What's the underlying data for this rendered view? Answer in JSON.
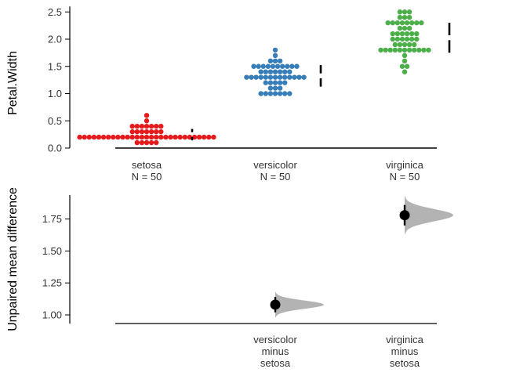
{
  "chart_data": [
    {
      "type": "scatter",
      "subtype": "swarm",
      "ylabel": "Petal.Width",
      "ylim": [
        0,
        2.6
      ],
      "yticks": [
        "0.0",
        "0.5",
        "1.0",
        "1.5",
        "2.0",
        "2.5"
      ],
      "ytick_values": [
        0,
        0.5,
        1.0,
        1.5,
        2.0,
        2.5
      ],
      "categories": [
        "setosa",
        "versicolor",
        "virginica"
      ],
      "n_labels": [
        "N = 50",
        "N = 50",
        "N = 50"
      ],
      "groups": [
        {
          "name": "setosa",
          "color": "#e41a1c",
          "values": [
            0.1,
            0.1,
            0.1,
            0.1,
            0.1,
            0.2,
            0.2,
            0.2,
            0.2,
            0.2,
            0.2,
            0.2,
            0.2,
            0.2,
            0.2,
            0.2,
            0.2,
            0.2,
            0.2,
            0.2,
            0.2,
            0.2,
            0.2,
            0.2,
            0.2,
            0.2,
            0.2,
            0.2,
            0.2,
            0.2,
            0.2,
            0.2,
            0.2,
            0.2,
            0.3,
            0.3,
            0.3,
            0.3,
            0.3,
            0.3,
            0.3,
            0.4,
            0.4,
            0.4,
            0.4,
            0.4,
            0.4,
            0.4,
            0.5,
            0.6
          ],
          "mean": 0.246,
          "sd": 0.105
        },
        {
          "name": "versicolor",
          "color": "#377eb8",
          "values": [
            1.0,
            1.0,
            1.0,
            1.0,
            1.0,
            1.0,
            1.0,
            1.1,
            1.1,
            1.1,
            1.2,
            1.2,
            1.2,
            1.2,
            1.2,
            1.3,
            1.3,
            1.3,
            1.3,
            1.3,
            1.3,
            1.3,
            1.3,
            1.3,
            1.3,
            1.3,
            1.3,
            1.3,
            1.4,
            1.4,
            1.4,
            1.4,
            1.4,
            1.4,
            1.4,
            1.5,
            1.5,
            1.5,
            1.5,
            1.5,
            1.5,
            1.5,
            1.5,
            1.5,
            1.5,
            1.6,
            1.6,
            1.6,
            1.7,
            1.8
          ],
          "mean": 1.326,
          "sd": 0.198
        },
        {
          "name": "virginica",
          "color": "#4daf4a",
          "values": [
            1.4,
            1.5,
            1.5,
            1.6,
            1.7,
            1.8,
            1.8,
            1.8,
            1.8,
            1.8,
            1.8,
            1.8,
            1.8,
            1.8,
            1.8,
            1.8,
            1.9,
            1.9,
            1.9,
            1.9,
            1.9,
            2.0,
            2.0,
            2.0,
            2.0,
            2.0,
            2.0,
            2.1,
            2.1,
            2.1,
            2.1,
            2.1,
            2.1,
            2.2,
            2.2,
            2.2,
            2.3,
            2.3,
            2.3,
            2.3,
            2.3,
            2.3,
            2.3,
            2.3,
            2.4,
            2.4,
            2.4,
            2.5,
            2.5,
            2.5
          ],
          "mean": 2.026,
          "sd": 0.275
        }
      ]
    },
    {
      "type": "scatter",
      "subtype": "estimation",
      "ylabel": "Unpaired mean difference",
      "ylim": [
        0.93,
        1.95
      ],
      "yticks": [
        "1.00",
        "1.25",
        "1.50",
        "1.75"
      ],
      "ytick_values": [
        1.0,
        1.25,
        1.5,
        1.75
      ],
      "comparisons": [
        {
          "label": [
            "versicolor",
            "minus",
            "setosa"
          ],
          "category_index": 1,
          "diff": 1.08,
          "ci": [
            1.02,
            1.14
          ],
          "dist_range": [
            0.98,
            1.18
          ]
        },
        {
          "label": [
            "virginica",
            "minus",
            "setosa"
          ],
          "category_index": 2,
          "diff": 1.78,
          "ci": [
            1.7,
            1.86
          ],
          "dist_range": [
            1.63,
            1.93
          ]
        }
      ],
      "dist_color": "#b3b3b3",
      "point_color": "#000000"
    }
  ]
}
